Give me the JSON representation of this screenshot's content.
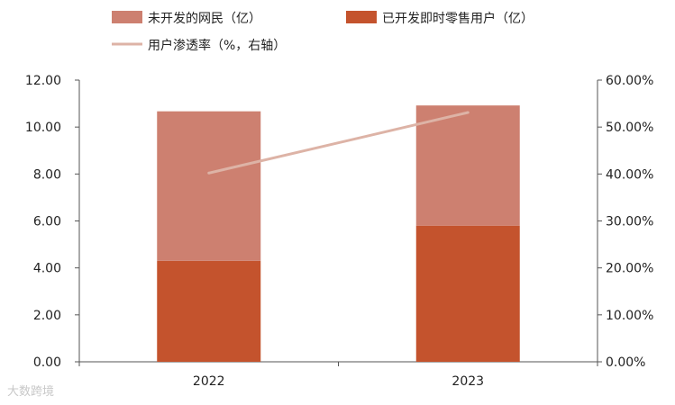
{
  "chart_data": {
    "type": "bar",
    "stacked": true,
    "categories": [
      "2022",
      "2023"
    ],
    "series": [
      {
        "name": "已开发即时零售用户（亿）",
        "values": [
          4.3,
          5.8
        ],
        "color": "#c4532d",
        "kind": "bar"
      },
      {
        "name": "未开发的网民（亿）",
        "values": [
          6.37,
          5.12
        ],
        "color": "#cd8070",
        "kind": "bar"
      },
      {
        "name": "用户渗透率（%，右轴）",
        "values": [
          40.2,
          53.1
        ],
        "color": "#ddb3a6",
        "kind": "line",
        "axis": "right"
      }
    ],
    "y_left": {
      "range": [
        0,
        12
      ],
      "ticks": [
        "0.00",
        "2.00",
        "4.00",
        "6.00",
        "8.00",
        "10.00",
        "12.00"
      ]
    },
    "y_right": {
      "range": [
        0,
        60
      ],
      "ticks": [
        "0.00%",
        "10.00%",
        "20.00%",
        "30.00%",
        "40.00%",
        "50.00%",
        "60.00%"
      ]
    },
    "legend_position": "top",
    "grid": false
  },
  "watermark": "大数跨境"
}
